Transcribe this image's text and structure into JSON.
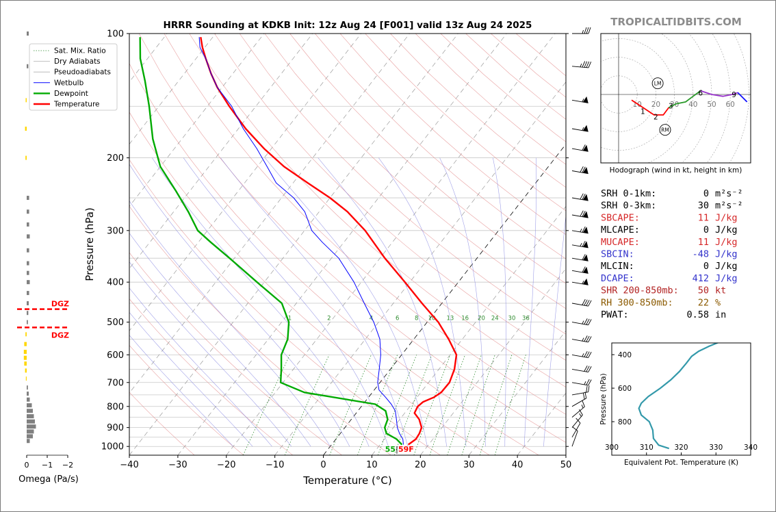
{
  "title": "HRRR Sounding at KDKB Init: 12z Aug 24 [F001] valid 13z Aug 24 2025",
  "watermark": "TROPICALTIDBITS.COM",
  "chart_data": [
    {
      "type": "line",
      "name": "skewt",
      "xlabel": "Temperature (°C)",
      "ylabel": "Pressure (hPa)",
      "xlim": [
        -40,
        50
      ],
      "ylim": [
        1050,
        100
      ],
      "log_y": true,
      "x_ticks": [
        "−40",
        "−30",
        "−20",
        "−10",
        "0",
        "10",
        "20",
        "30",
        "40",
        "50"
      ],
      "x_tick_values": [
        -40,
        -30,
        -20,
        -10,
        0,
        10,
        20,
        30,
        40,
        50
      ],
      "y_ticks": [
        "100",
        "200",
        "300",
        "400",
        "500",
        "600",
        "700",
        "800",
        "900",
        "1000"
      ],
      "y_tick_values": [
        100,
        200,
        300,
        400,
        500,
        600,
        700,
        800,
        900,
        1000
      ],
      "legend": [
        "Sat. Mix. Ratio",
        "Dry Adiabats",
        "Pseudoadiabats",
        "Wetbulb",
        "Dewpoint",
        "Temperature"
      ],
      "mixing_ratio_labels": [
        "1",
        "2",
        "4",
        "6",
        "8",
        "10",
        "13",
        "16",
        "20",
        "24",
        "30",
        "36"
      ],
      "mixing_ratio_values": [
        1,
        2,
        4,
        6,
        8,
        10,
        13,
        16,
        20,
        24,
        30,
        36
      ],
      "surface_dewpoint_label": "55",
      "surface_temp_label": "59F",
      "series": [
        {
          "name": "Temperature",
          "color": "#ff0000",
          "points": [
            [
              15.8,
              990
            ],
            [
              16.5,
              960
            ],
            [
              16.3,
              930
            ],
            [
              15.8,
              900
            ],
            [
              14.0,
              860
            ],
            [
              12.0,
              830
            ],
            [
              11.6,
              800
            ],
            [
              12.0,
              780
            ],
            [
              13.5,
              760
            ],
            [
              14.2,
              740
            ],
            [
              14.3,
              700
            ],
            [
              13.2,
              650
            ],
            [
              11.3,
              600
            ],
            [
              7.2,
              550
            ],
            [
              2.3,
              500
            ],
            [
              -4.1,
              450
            ],
            [
              -11.0,
              400
            ],
            [
              -19.0,
              350
            ],
            [
              -27.5,
              300
            ],
            [
              -34.2,
              270
            ],
            [
              -40.0,
              250
            ],
            [
              -47.0,
              230
            ],
            [
              -54.5,
              210
            ],
            [
              -61.5,
              190
            ],
            [
              -68.5,
              170
            ],
            [
              -75.5,
              150
            ],
            [
              -81.0,
              135
            ],
            [
              -84.5,
              125
            ],
            [
              -88.0,
              115
            ],
            [
              -90.5,
              108
            ],
            [
              -92.5,
              102
            ]
          ]
        },
        {
          "name": "Dewpoint",
          "color": "#00aa00",
          "points": [
            [
              14.5,
              990
            ],
            [
              12.5,
              960
            ],
            [
              9.5,
              930
            ],
            [
              8.2,
              900
            ],
            [
              7.5,
              860
            ],
            [
              5.7,
              820
            ],
            [
              2.5,
              790
            ],
            [
              -14.0,
              740
            ],
            [
              -20.5,
              700
            ],
            [
              -22.5,
              650
            ],
            [
              -24.8,
              600
            ],
            [
              -26.0,
              550
            ],
            [
              -28.5,
              500
            ],
            [
              -33.0,
              450
            ],
            [
              -41.5,
              400
            ],
            [
              -51.0,
              350
            ],
            [
              -57.5,
              320
            ],
            [
              -62.0,
              300
            ],
            [
              -67.0,
              270
            ],
            [
              -73.0,
              240
            ],
            [
              -80.0,
              210
            ],
            [
              -86.0,
              180
            ],
            [
              -92.0,
              150
            ],
            [
              -97.0,
              130
            ],
            [
              -101.5,
              115
            ],
            [
              -105.0,
              102
            ]
          ]
        },
        {
          "name": "Wetbulb",
          "color": "#0000ff",
          "points": [
            [
              14.8,
              990
            ],
            [
              13.8,
              960
            ],
            [
              12.2,
              930
            ],
            [
              10.8,
              900
            ],
            [
              9.3,
              860
            ],
            [
              7.7,
              820
            ],
            [
              5.8,
              790
            ],
            [
              3.5,
              760
            ],
            [
              1.0,
              730
            ],
            [
              -0.5,
              700
            ],
            [
              -2.3,
              650
            ],
            [
              -4.3,
              600
            ],
            [
              -7.0,
              550
            ],
            [
              -11.0,
              500
            ],
            [
              -16.0,
              450
            ],
            [
              -21.5,
              400
            ],
            [
              -28.5,
              350
            ],
            [
              -34.5,
              320
            ],
            [
              -38.5,
              300
            ],
            [
              -43.0,
              270
            ],
            [
              -47.5,
              250
            ],
            [
              -53.5,
              230
            ],
            [
              -58.0,
              210
            ],
            [
              -63.0,
              190
            ],
            [
              -69.0,
              170
            ],
            [
              -75.0,
              150
            ],
            [
              -81.0,
              135
            ],
            [
              -84.5,
              125
            ],
            [
              -88.0,
              115
            ],
            [
              -91.0,
              108
            ],
            [
              -92.8,
              102
            ]
          ]
        }
      ]
    },
    {
      "type": "line",
      "name": "hodograph",
      "xlabel": "Hodograph (wind in kt, height in km)",
      "ring_labels": [
        "10",
        "20",
        "30",
        "40",
        "50",
        "60"
      ],
      "ring_values": [
        10,
        20,
        30,
        40,
        50,
        60
      ],
      "height_labels": [
        "1",
        "2",
        "3",
        "6",
        "9"
      ],
      "markers": [
        "LM",
        "RM"
      ],
      "segments": [
        {
          "color": "#ff0000",
          "points": [
            [
              7,
              -3
            ],
            [
              13,
              -7
            ],
            [
              19,
              -11
            ],
            [
              24,
              -11
            ],
            [
              27,
              -7
            ]
          ]
        },
        {
          "color": "#2a9a2a",
          "points": [
            [
              27,
              -7
            ],
            [
              31,
              -5
            ],
            [
              36,
              -4
            ],
            [
              40,
              -1
            ],
            [
              44,
              2
            ]
          ]
        },
        {
          "color": "#9933cc",
          "points": [
            [
              44,
              2
            ],
            [
              50,
              0
            ],
            [
              56,
              -1
            ],
            [
              61,
              0
            ],
            [
              64,
              1
            ]
          ]
        },
        {
          "color": "#1111ff",
          "points": [
            [
              64,
              1
            ],
            [
              67,
              -2
            ],
            [
              69,
              -4
            ],
            [
              68,
              -3
            ]
          ]
        }
      ]
    },
    {
      "type": "line",
      "name": "theta_e",
      "xlabel": "Equivalent Pot. Temperature (K)",
      "ylabel": "Pressure (hPa)",
      "xlim": [
        300,
        340
      ],
      "ylim": [
        1000,
        300
      ],
      "x_ticks": [
        "300",
        "310",
        "320",
        "330",
        "340"
      ],
      "x_tick_values": [
        300,
        310,
        320,
        330,
        340
      ],
      "y_ticks": [
        "400",
        "600",
        "800"
      ],
      "y_tick_values": [
        400,
        600,
        800
      ],
      "series": [
        {
          "name": "Equivalent Pot. Temperature",
          "color": "#3399aa",
          "points": [
            [
              331.5,
              320
            ],
            [
              328,
              350
            ],
            [
              325,
              380
            ],
            [
              323,
              410
            ],
            [
              321.5,
              450
            ],
            [
              319.5,
              500
            ],
            [
              317,
              550
            ],
            [
              314,
              600
            ],
            [
              310.5,
              650
            ],
            [
              308.5,
              690
            ],
            [
              307.8,
              720
            ],
            [
              308.5,
              760
            ],
            [
              310.8,
              800
            ],
            [
              311.8,
              850
            ],
            [
              312,
              900
            ],
            [
              313.5,
              940
            ],
            [
              316.5,
              960
            ]
          ]
        }
      ]
    },
    {
      "type": "bar",
      "name": "omega",
      "xlabel": "Omega (Pa/s)",
      "x_ticks": [
        "0",
        "−1",
        "−2"
      ],
      "x_tick_values": [
        0,
        -1,
        -2
      ],
      "dgz_label": "DGZ",
      "dgz_levels": [
        465,
        515
      ],
      "bars": [
        {
          "p": 100,
          "v": -0.1,
          "color": "#808080"
        },
        {
          "p": 120,
          "v": -0.08,
          "color": "#808080"
        },
        {
          "p": 145,
          "v": 0.05,
          "color": "#ffd700"
        },
        {
          "p": 170,
          "v": 0.08,
          "color": "#ffd700"
        },
        {
          "p": 200,
          "v": 0.06,
          "color": "#ffd700"
        },
        {
          "p": 250,
          "v": -0.12,
          "color": "#808080"
        },
        {
          "p": 270,
          "v": -0.12,
          "color": "#808080"
        },
        {
          "p": 290,
          "v": -0.12,
          "color": "#808080"
        },
        {
          "p": 310,
          "v": -0.15,
          "color": "#808080"
        },
        {
          "p": 335,
          "v": -0.12,
          "color": "#808080"
        },
        {
          "p": 360,
          "v": -0.12,
          "color": "#808080"
        },
        {
          "p": 380,
          "v": -0.12,
          "color": "#808080"
        },
        {
          "p": 400,
          "v": -0.15,
          "color": "#808080"
        },
        {
          "p": 425,
          "v": -0.12,
          "color": "#808080"
        },
        {
          "p": 450,
          "v": -0.1,
          "color": "#808080"
        },
        {
          "p": 475,
          "v": -0.08,
          "color": "#808080"
        },
        {
          "p": 500,
          "v": -0.06,
          "color": "#808080"
        },
        {
          "p": 535,
          "v": 0.06,
          "color": "#ffd700"
        },
        {
          "p": 565,
          "v": 0.12,
          "color": "#ffd700"
        },
        {
          "p": 590,
          "v": 0.14,
          "color": "#ffd700"
        },
        {
          "p": 610,
          "v": 0.14,
          "color": "#ffd700"
        },
        {
          "p": 630,
          "v": 0.12,
          "color": "#ffd700"
        },
        {
          "p": 655,
          "v": 0.08,
          "color": "#ffd700"
        },
        {
          "p": 685,
          "v": 0.04,
          "color": "#ffd700"
        },
        {
          "p": 720,
          "v": -0.06,
          "color": "#808080"
        },
        {
          "p": 745,
          "v": -0.1,
          "color": "#808080"
        },
        {
          "p": 770,
          "v": -0.15,
          "color": "#808080"
        },
        {
          "p": 795,
          "v": -0.25,
          "color": "#808080"
        },
        {
          "p": 820,
          "v": -0.3,
          "color": "#808080"
        },
        {
          "p": 845,
          "v": -0.35,
          "color": "#808080"
        },
        {
          "p": 870,
          "v": -0.4,
          "color": "#808080"
        },
        {
          "p": 895,
          "v": -0.45,
          "color": "#808080"
        },
        {
          "p": 920,
          "v": -0.35,
          "color": "#808080"
        },
        {
          "p": 945,
          "v": -0.3,
          "color": "#808080"
        },
        {
          "p": 970,
          "v": -0.15,
          "color": "#808080"
        }
      ]
    }
  ],
  "wind_barbs": [
    {
      "p": 100,
      "speed": 35,
      "dir": 270
    },
    {
      "p": 120,
      "speed": 45,
      "dir": 275
    },
    {
      "p": 145,
      "speed": 55,
      "dir": 280
    },
    {
      "p": 170,
      "speed": 55,
      "dir": 280
    },
    {
      "p": 190,
      "speed": 60,
      "dir": 280
    },
    {
      "p": 215,
      "speed": 70,
      "dir": 280
    },
    {
      "p": 250,
      "speed": 70,
      "dir": 280
    },
    {
      "p": 275,
      "speed": 70,
      "dir": 280
    },
    {
      "p": 300,
      "speed": 65,
      "dir": 280
    },
    {
      "p": 325,
      "speed": 65,
      "dir": 280
    },
    {
      "p": 350,
      "speed": 60,
      "dir": 280
    },
    {
      "p": 375,
      "speed": 60,
      "dir": 280
    },
    {
      "p": 400,
      "speed": 55,
      "dir": 280
    },
    {
      "p": 450,
      "speed": 40,
      "dir": 280
    },
    {
      "p": 500,
      "speed": 35,
      "dir": 280
    },
    {
      "p": 550,
      "speed": 35,
      "dir": 280
    },
    {
      "p": 600,
      "speed": 35,
      "dir": 280
    },
    {
      "p": 650,
      "speed": 30,
      "dir": 280
    },
    {
      "p": 700,
      "speed": 25,
      "dir": 280
    },
    {
      "p": 750,
      "speed": 20,
      "dir": 260
    },
    {
      "p": 800,
      "speed": 20,
      "dir": 240
    },
    {
      "p": 850,
      "speed": 15,
      "dir": 230
    },
    {
      "p": 900,
      "speed": 15,
      "dir": 220
    },
    {
      "p": 950,
      "speed": 10,
      "dir": 210
    },
    {
      "p": 1000,
      "speed": 10,
      "dir": 200
    }
  ],
  "stats": [
    {
      "label": "SRH 0-1km:",
      "value": "0",
      "unit": "m²s⁻²",
      "color": "#000000"
    },
    {
      "label": "SRH 0-3km:",
      "value": "30",
      "unit": "m²s⁻²",
      "color": "#000000"
    },
    {
      "label": "SBCAPE:",
      "value": "11",
      "unit": "J/kg",
      "color": "#d62728"
    },
    {
      "label": "MLCAPE:",
      "value": "0",
      "unit": "J/kg",
      "color": "#000000"
    },
    {
      "label": "MUCAPE:",
      "value": "11",
      "unit": "J/kg",
      "color": "#d62728"
    },
    {
      "label": "SBCIN:",
      "value": "-48",
      "unit": "J/kg",
      "color": "#3333cc"
    },
    {
      "label": "MLCIN:",
      "value": "0",
      "unit": "J/kg",
      "color": "#000000"
    },
    {
      "label": "DCAPE:",
      "value": "412",
      "unit": "J/kg",
      "color": "#3333cc"
    },
    {
      "label": "SHR 200-850mb:",
      "value": "50",
      "unit": "kt",
      "color": "#b22222"
    },
    {
      "label": "RH 300-850mb:",
      "value": "22",
      "unit": "%",
      "color": "#8b5a00"
    },
    {
      "label": "PWAT:",
      "value": "0.58",
      "unit": "in",
      "color": "#000000"
    }
  ]
}
